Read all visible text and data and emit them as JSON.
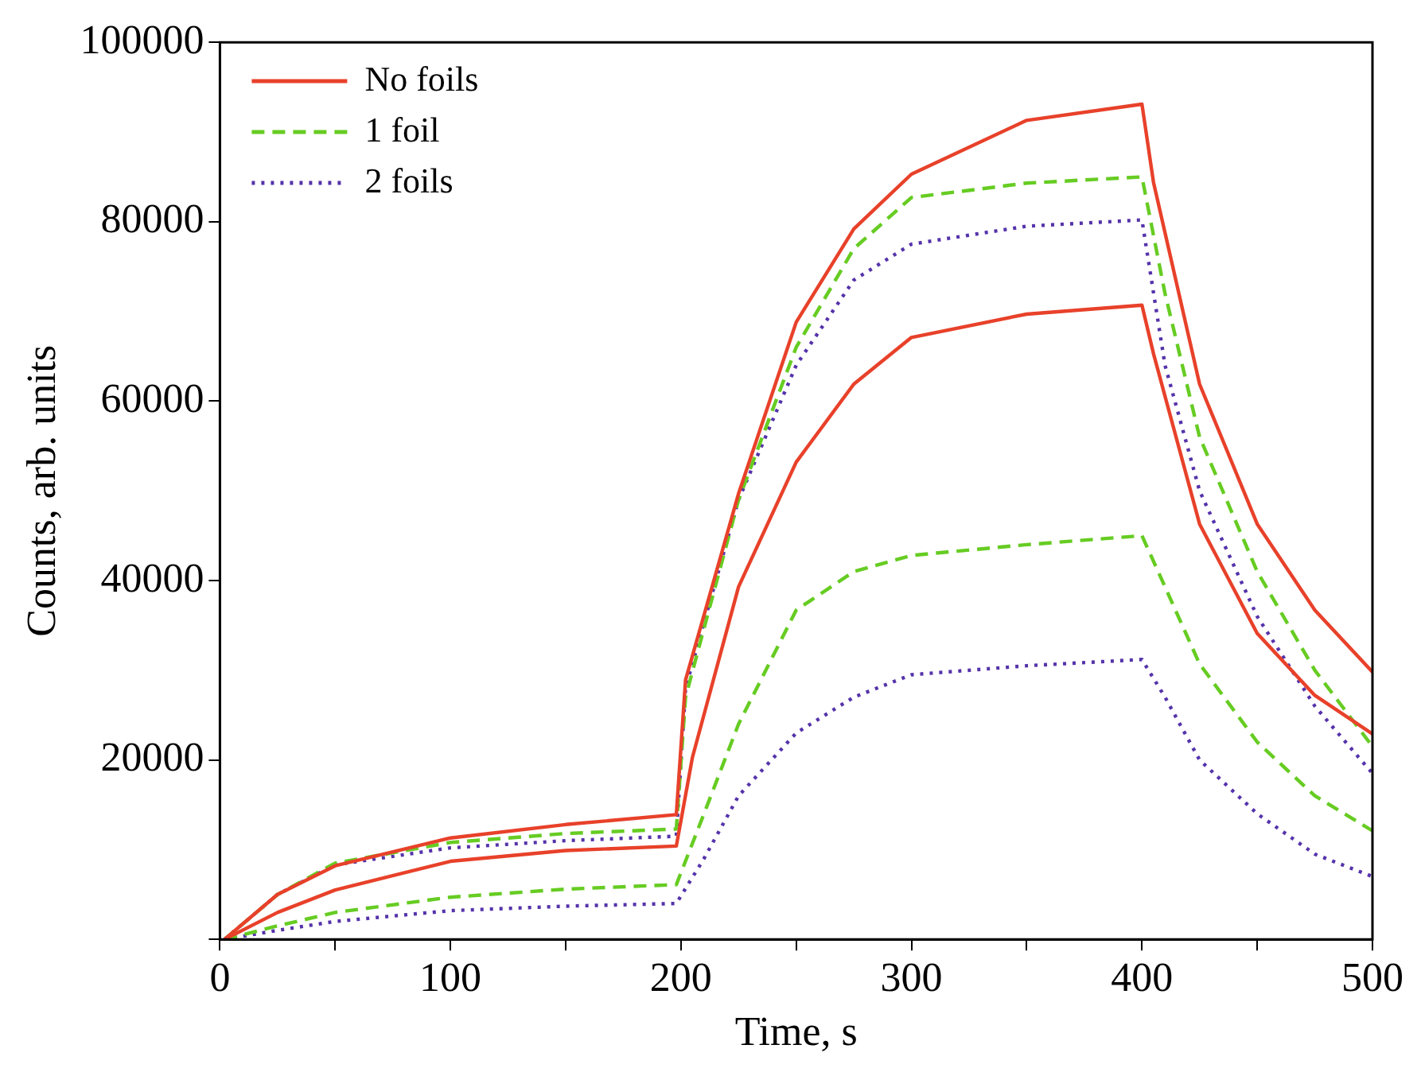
{
  "chart_data": {
    "type": "line",
    "xlabel": "Time, s",
    "ylabel": "Counts, arb. units",
    "xlim": [
      0,
      500
    ],
    "xticks": [
      0,
      {
        "value": 50,
        "label": null
      },
      100,
      {
        "value": 150,
        "label": null
      },
      200,
      {
        "value": 250,
        "label": null
      },
      300,
      {
        "value": 350,
        "label": null
      },
      400,
      {
        "value": 450,
        "label": null
      },
      500
    ],
    "ylim": [
      0,
      100000
    ],
    "yticks": [
      {
        "value": 0,
        "label": null
      },
      20000,
      40000,
      60000,
      80000,
      100000
    ],
    "grid": false,
    "legend": "top left",
    "marker": "none",
    "series": [
      {
        "name": "No foils",
        "color": "#e8412a",
        "line_style": "solid",
        "x": [
          2,
          25,
          50,
          100,
          150,
          198,
          202,
          225,
          250,
          275,
          300,
          350,
          400,
          405,
          425,
          450,
          475,
          500
        ],
        "values": [
          0,
          5000,
          8200,
          11300,
          12800,
          13900,
          28900,
          49700,
          68800,
          79200,
          85300,
          91300,
          93100,
          84400,
          61900,
          46300,
          36700,
          29800
        ]
      },
      {
        "color": "#e8412a",
        "line_style": "solid",
        "x": [
          2,
          25,
          50,
          100,
          150,
          198,
          205,
          225,
          250,
          275,
          300,
          350,
          400,
          405,
          425,
          450,
          475,
          500
        ],
        "values": [
          0,
          3000,
          5500,
          8700,
          9900,
          10400,
          20300,
          39300,
          53200,
          61900,
          67100,
          69700,
          70700,
          65300,
          46300,
          34100,
          27200,
          22900
        ]
      },
      {
        "name": "1 foil",
        "color": "#66cc22",
        "line_style": "dashed",
        "x": [
          2,
          25,
          50,
          100,
          150,
          198,
          202,
          225,
          250,
          275,
          300,
          350,
          400,
          410,
          425,
          450,
          475,
          500
        ],
        "values": [
          0,
          5000,
          8500,
          10800,
          11800,
          12300,
          27000,
          49000,
          66000,
          77000,
          82700,
          84300,
          85000,
          72000,
          56000,
          41000,
          30000,
          21500
        ]
      },
      {
        "color": "#66cc22",
        "line_style": "dashed",
        "x": [
          2,
          25,
          50,
          100,
          150,
          198,
          210,
          225,
          250,
          275,
          300,
          350,
          400,
          410,
          425,
          450,
          475,
          500
        ],
        "values": [
          0,
          1500,
          3000,
          4700,
          5600,
          6100,
          14000,
          24000,
          36700,
          41000,
          42800,
          44000,
          45000,
          39300,
          30700,
          22000,
          16000,
          12100
        ]
      },
      {
        "name": "2 foils",
        "color": "#5533aa",
        "line_style": "dotted",
        "x": [
          2,
          25,
          50,
          100,
          150,
          198,
          202,
          225,
          250,
          275,
          300,
          350,
          400,
          410,
          425,
          450,
          475,
          500
        ],
        "values": [
          0,
          5000,
          8300,
          10200,
          11000,
          11500,
          28000,
          49000,
          64000,
          73500,
          77500,
          79500,
          80200,
          64000,
          50000,
          36000,
          26000,
          18500
        ]
      },
      {
        "color": "#5533aa",
        "line_style": "dotted",
        "x": [
          2,
          25,
          50,
          100,
          150,
          198,
          210,
          225,
          250,
          275,
          300,
          350,
          400,
          410,
          425,
          450,
          475,
          500
        ],
        "values": [
          0,
          1000,
          2000,
          3200,
          3700,
          4000,
          9000,
          16000,
          23000,
          27000,
          29500,
          30500,
          31200,
          27000,
          20000,
          14000,
          9500,
          7000
        ]
      }
    ]
  }
}
